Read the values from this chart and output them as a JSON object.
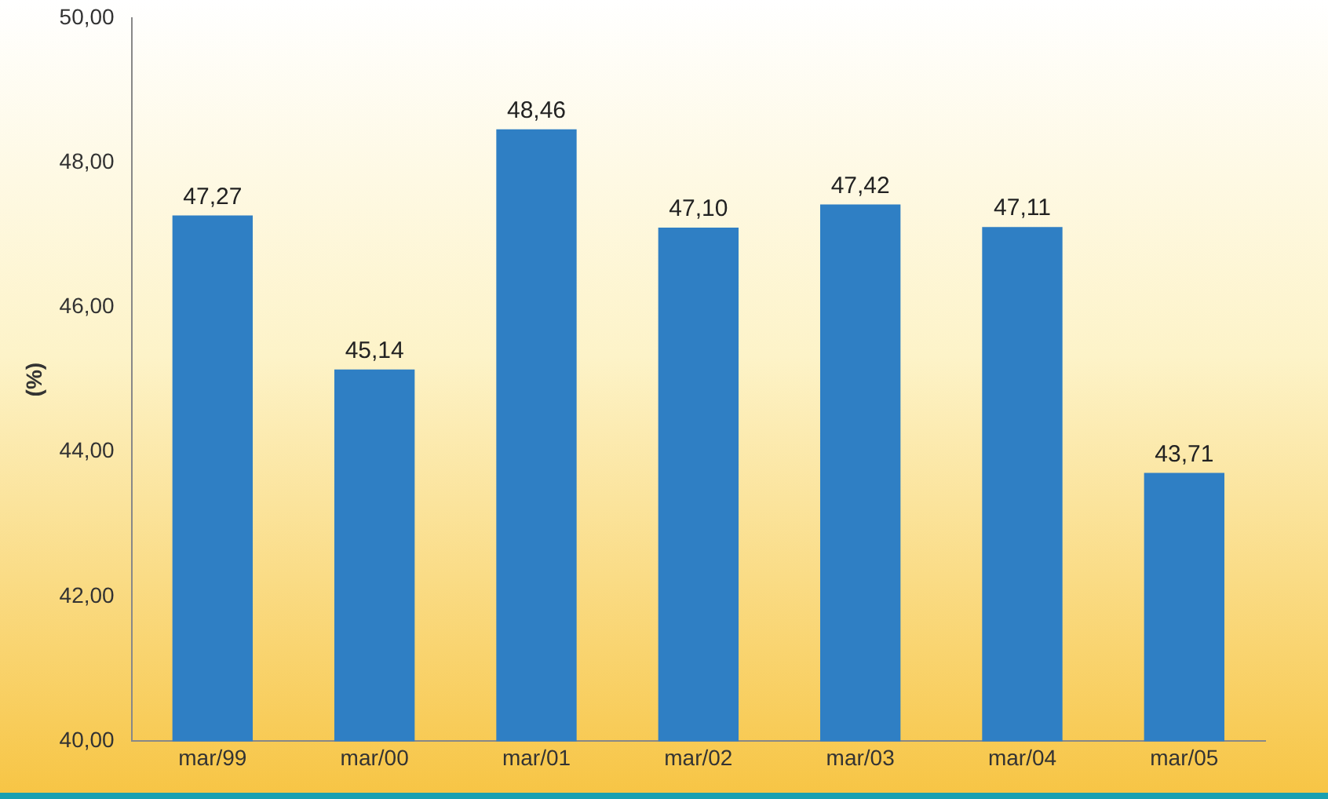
{
  "chart_data": {
    "type": "bar",
    "ylabel": "(%)",
    "categories": [
      "mar/99",
      "mar/00",
      "mar/01",
      "mar/02",
      "mar/03",
      "mar/04",
      "mar/05"
    ],
    "values": [
      47.27,
      45.14,
      48.46,
      47.1,
      47.42,
      47.11,
      43.71
    ],
    "value_labels": [
      "47,27",
      "45,14",
      "48,46",
      "47,10",
      "47,42",
      "47,11",
      "43,71"
    ],
    "color": "#2f7fc4",
    "ylim": [
      40,
      50
    ],
    "yticks": [
      {
        "value": 40,
        "label": "40,00"
      },
      {
        "value": 42,
        "label": "42,00"
      },
      {
        "value": 44,
        "label": "44,00"
      },
      {
        "value": 46,
        "label": "46,00"
      },
      {
        "value": 48,
        "label": "48,00"
      },
      {
        "value": 50,
        "label": "50,00"
      }
    ],
    "grid": false,
    "legend": false
  }
}
